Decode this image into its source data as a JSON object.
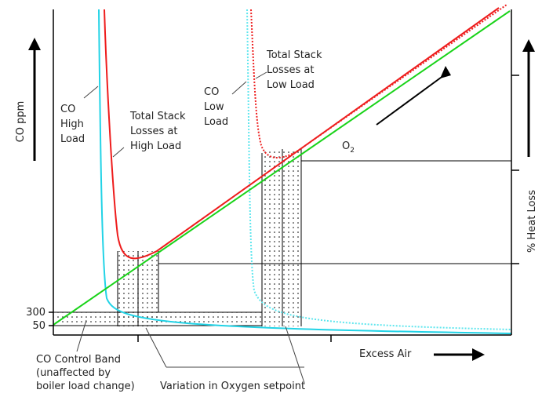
{
  "labels": {
    "co_ppm": "CO ppm",
    "heat_loss": "% Heat Loss",
    "excess_air": "Excess Air",
    "o2": "O",
    "o2_sub": "2",
    "tick_300": "300",
    "tick_50": "50",
    "co_high": [
      "CO",
      "High",
      "Load"
    ],
    "stack_high": [
      "Total Stack",
      "Losses at",
      "High Load"
    ],
    "co_low": [
      "CO",
      "Low",
      "Load"
    ],
    "stack_low": [
      "Total Stack",
      "Losses at",
      "Low Load"
    ],
    "co_band": [
      "CO Control Band",
      "(unaffected by",
      "boiler load change)"
    ],
    "variation": "Variation in Oxygen setpoint"
  },
  "colors": {
    "co_high_curve": "#22d3e6",
    "co_low_curve": "#5fe6ee",
    "stack_high_curve": "#ee1c1c",
    "stack_low_curve": "#ee2222",
    "o2_line": "#19d319",
    "axis": "#000000",
    "text": "#222222"
  },
  "legend_semantics": {
    "co_high_curve": "solid",
    "co_low_curve": "dotted",
    "stack_high_curve": "solid",
    "stack_low_curve": "dotted"
  }
}
